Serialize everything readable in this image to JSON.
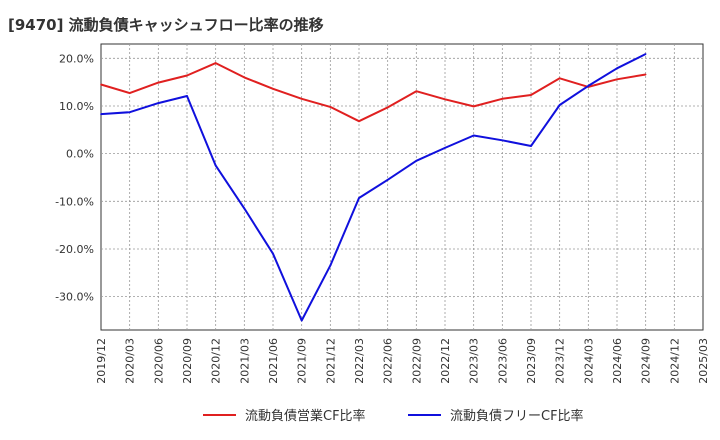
{
  "chart_data": {
    "type": "line",
    "title": "[9470]  流動負債キャッシュフロー比率の推移",
    "xlabel": "",
    "ylabel": "",
    "ylim": [
      -37,
      23
    ],
    "y_ticks": [
      "20.0%",
      "10.0%",
      "0.0%",
      "-10.0%",
      "-20.0%",
      "-30.0%"
    ],
    "y_tick_values": [
      20,
      10,
      0,
      -10,
      -20,
      -30
    ],
    "x_ticks": [
      "2019/12",
      "2020/03",
      "2020/06",
      "2020/09",
      "2020/12",
      "2021/03",
      "2021/06",
      "2021/09",
      "2021/12",
      "2022/03",
      "2022/06",
      "2022/09",
      "2022/12",
      "2023/03",
      "2023/06",
      "2023/09",
      "2023/12",
      "2024/03",
      "2024/06",
      "2024/09",
      "2024/12",
      "2025/03"
    ],
    "grid": true,
    "legend_position": "bottom",
    "series": [
      {
        "name": "流動負債営業CF比率",
        "color": "#e02020",
        "values": [
          14.5,
          12.7,
          14.9,
          16.4,
          19.0,
          16.0,
          13.6,
          11.5,
          9.8,
          6.8,
          9.7,
          13.1,
          11.4,
          9.9,
          11.5,
          12.3,
          15.8,
          14.0,
          15.6,
          16.6
        ]
      },
      {
        "name": "流動負債フリーCF比率",
        "color": "#1010dd",
        "values": [
          8.3,
          8.7,
          10.6,
          12.1,
          -2.5,
          -11.5,
          -21.0,
          -35.0,
          -23.5,
          -9.3,
          -5.5,
          -1.5,
          1.2,
          3.8,
          2.8,
          1.6,
          10.2,
          14.2,
          17.9,
          20.9
        ]
      }
    ]
  }
}
